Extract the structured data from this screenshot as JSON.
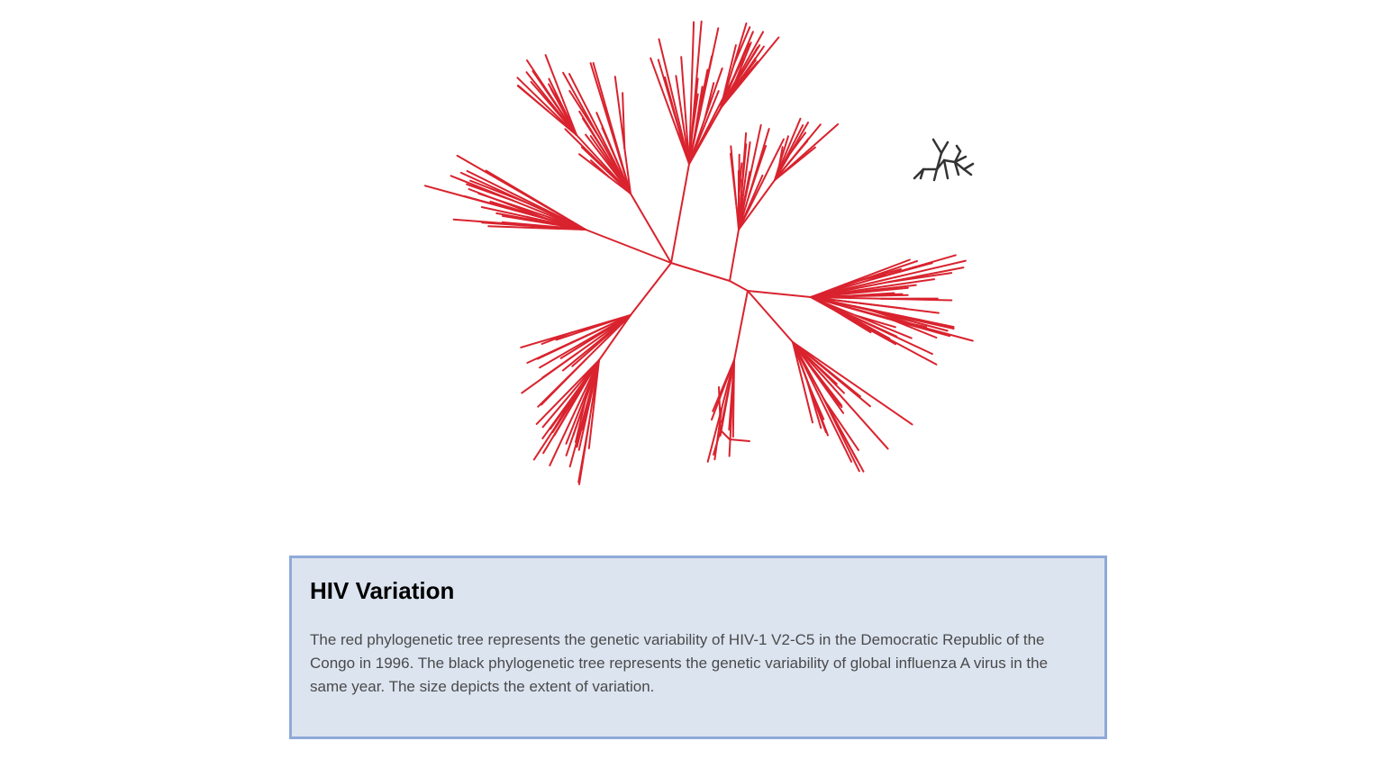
{
  "info": {
    "title": "HIV Variation",
    "description": "The red phylogenetic tree represents the genetic variability of HIV-1 V2-C5 in the Democratic Republic of the Congo in 1996. The black phylogenetic tree represents the genetic variability of global influenza A virus in the same year. The size depicts the extent of variation."
  },
  "trees": {
    "hiv": {
      "color": "#d9232e"
    },
    "influenza": {
      "color": "#333333"
    }
  }
}
